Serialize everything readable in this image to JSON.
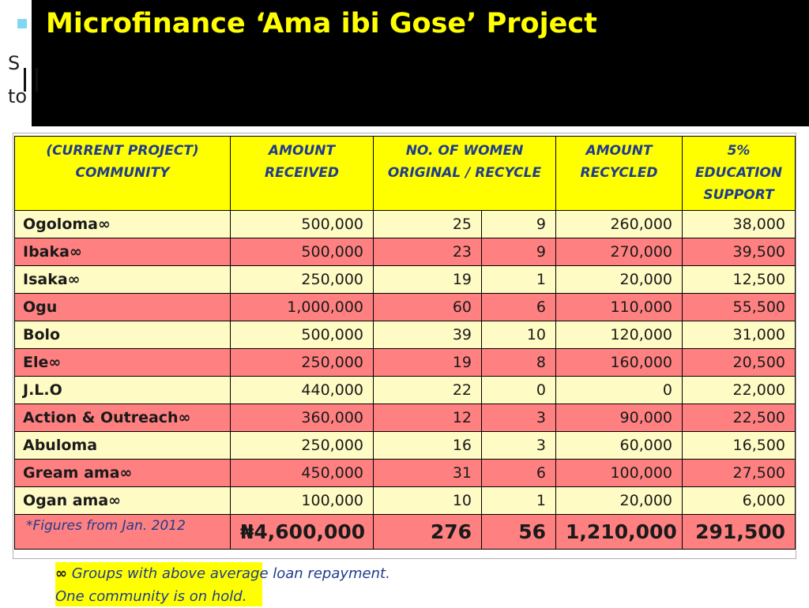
{
  "slide": {
    "title": "Microfinance ‘Ama ibi Gose’ Project",
    "background_text": [
      "S",
      "to"
    ]
  },
  "table": {
    "headers": {
      "community": "(CURRENT PROJECT) COMMUNITY",
      "amount_received": "AMOUNT RECEIVED",
      "women": "NO. OF WOMEN ORIGINAL /  RECYCLE",
      "amount_recycled": "AMOUNT RECYCLED",
      "education": "5% EDUCATION SUPPORT"
    },
    "rows": [
      {
        "community": "Ogoloma∞",
        "amount_received": "500,000",
        "original": "25",
        "recycle": "9",
        "amount_recycled": "260,000",
        "education": "38,000"
      },
      {
        "community": "Ibaka∞",
        "amount_received": "500,000",
        "original": "23",
        "recycle": "9",
        "amount_recycled": "270,000",
        "education": "39,500"
      },
      {
        "community": "Isaka∞",
        "amount_received": "250,000",
        "original": "19",
        "recycle": "1",
        "amount_recycled": "20,000",
        "education": "12,500"
      },
      {
        "community": "Ogu",
        "amount_received": "1,000,000",
        "original": "60",
        "recycle": "6",
        "amount_recycled": "110,000",
        "education": "55,500"
      },
      {
        "community": "Bolo",
        "amount_received": "500,000",
        "original": "39",
        "recycle": "10",
        "amount_recycled": "120,000",
        "education": "31,000"
      },
      {
        "community": "Ele∞",
        "amount_received": "250,000",
        "original": "19",
        "recycle": "8",
        "amount_recycled": "160,000",
        "education": "20,500"
      },
      {
        "community": "J.L.O",
        "amount_received": "440,000",
        "original": "22",
        "recycle": "0",
        "amount_recycled": "0",
        "education": "22,000"
      },
      {
        "community": "Action & Outreach∞",
        "amount_received": "360,000",
        "original": "12",
        "recycle": "3",
        "amount_recycled": "90,000",
        "education": "22,500"
      },
      {
        "community": "Abuloma",
        "amount_received": "250,000",
        "original": "16",
        "recycle": "3",
        "amount_recycled": "60,000",
        "education": "16,500"
      },
      {
        "community": "Gream ama∞",
        "amount_received": "450,000",
        "original": "31",
        "recycle": "6",
        "amount_recycled": "100,000",
        "education": "27,500"
      },
      {
        "community": "Ogan ama∞",
        "amount_received": "100,000",
        "original": "10",
        "recycle": "1",
        "amount_recycled": "20,000",
        "education": "6,000"
      }
    ],
    "totals": {
      "note": "*Figures from Jan. 2012",
      "amount_received": "₦4,600,000",
      "original": "276",
      "recycle": "56",
      "amount_recycled": "1,210,000",
      "education": "291,500"
    }
  },
  "legend": {
    "symbol": "∞",
    "line1": " Groups with above average loan repayment.",
    "line2": "One community is on hold."
  },
  "colors": {
    "title": "#ffff00",
    "header_bg": "#ffff00",
    "header_text": "#1f3c8c",
    "row_light": "#fffbc4",
    "row_pink": "#ff8080"
  }
}
